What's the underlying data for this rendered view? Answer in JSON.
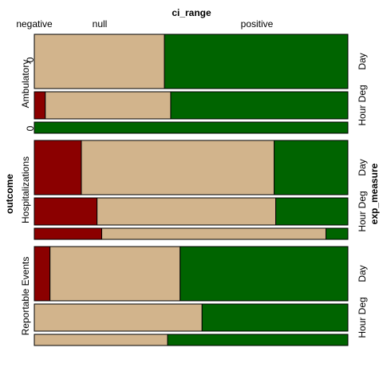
{
  "chart_data": {
    "type": "mosaic",
    "top_variable": "ci_range",
    "top_categories": [
      "negative",
      "null",
      "positive"
    ],
    "left_variable": "outcome",
    "right_variable": "exp_measure",
    "colors": {
      "negative": "#8b0000",
      "null": "#d2b48c",
      "positive": "#006400"
    },
    "groups": [
      {
        "outcome": "Ambulatory",
        "zero_mark": "0",
        "rows": [
          {
            "exp_measure": "Day",
            "weight": 1.0,
            "fractions": [
              0.0,
              0.415,
              0.585
            ]
          },
          {
            "exp_measure": "Hour Deg",
            "weight": 0.5,
            "fractions": [
              0.035,
              0.4,
              0.565
            ]
          },
          {
            "exp_measure": "",
            "weight": 0.2,
            "fractions": [
              0.0,
              0.0,
              1.0
            ]
          }
        ]
      },
      {
        "outcome": "Hospitalizations",
        "rows": [
          {
            "exp_measure": "Day",
            "weight": 1.0,
            "fractions": [
              0.15,
              0.615,
              0.235
            ]
          },
          {
            "exp_measure": "Hour Deg",
            "weight": 0.5,
            "fractions": [
              0.2,
              0.57,
              0.23
            ]
          },
          {
            "exp_measure": "",
            "weight": 0.2,
            "fractions": [
              0.215,
              0.715,
              0.07
            ]
          }
        ]
      },
      {
        "outcome": "Reportable Events",
        "rows": [
          {
            "exp_measure": "Day",
            "weight": 1.0,
            "fractions": [
              0.05,
              0.415,
              0.535
            ]
          },
          {
            "exp_measure": "Hour Deg",
            "weight": 0.5,
            "fractions": [
              0.0,
              0.535,
              0.465
            ]
          },
          {
            "exp_measure": "",
            "weight": 0.2,
            "fractions": [
              0.0,
              0.425,
              0.575
            ]
          }
        ]
      }
    ]
  }
}
